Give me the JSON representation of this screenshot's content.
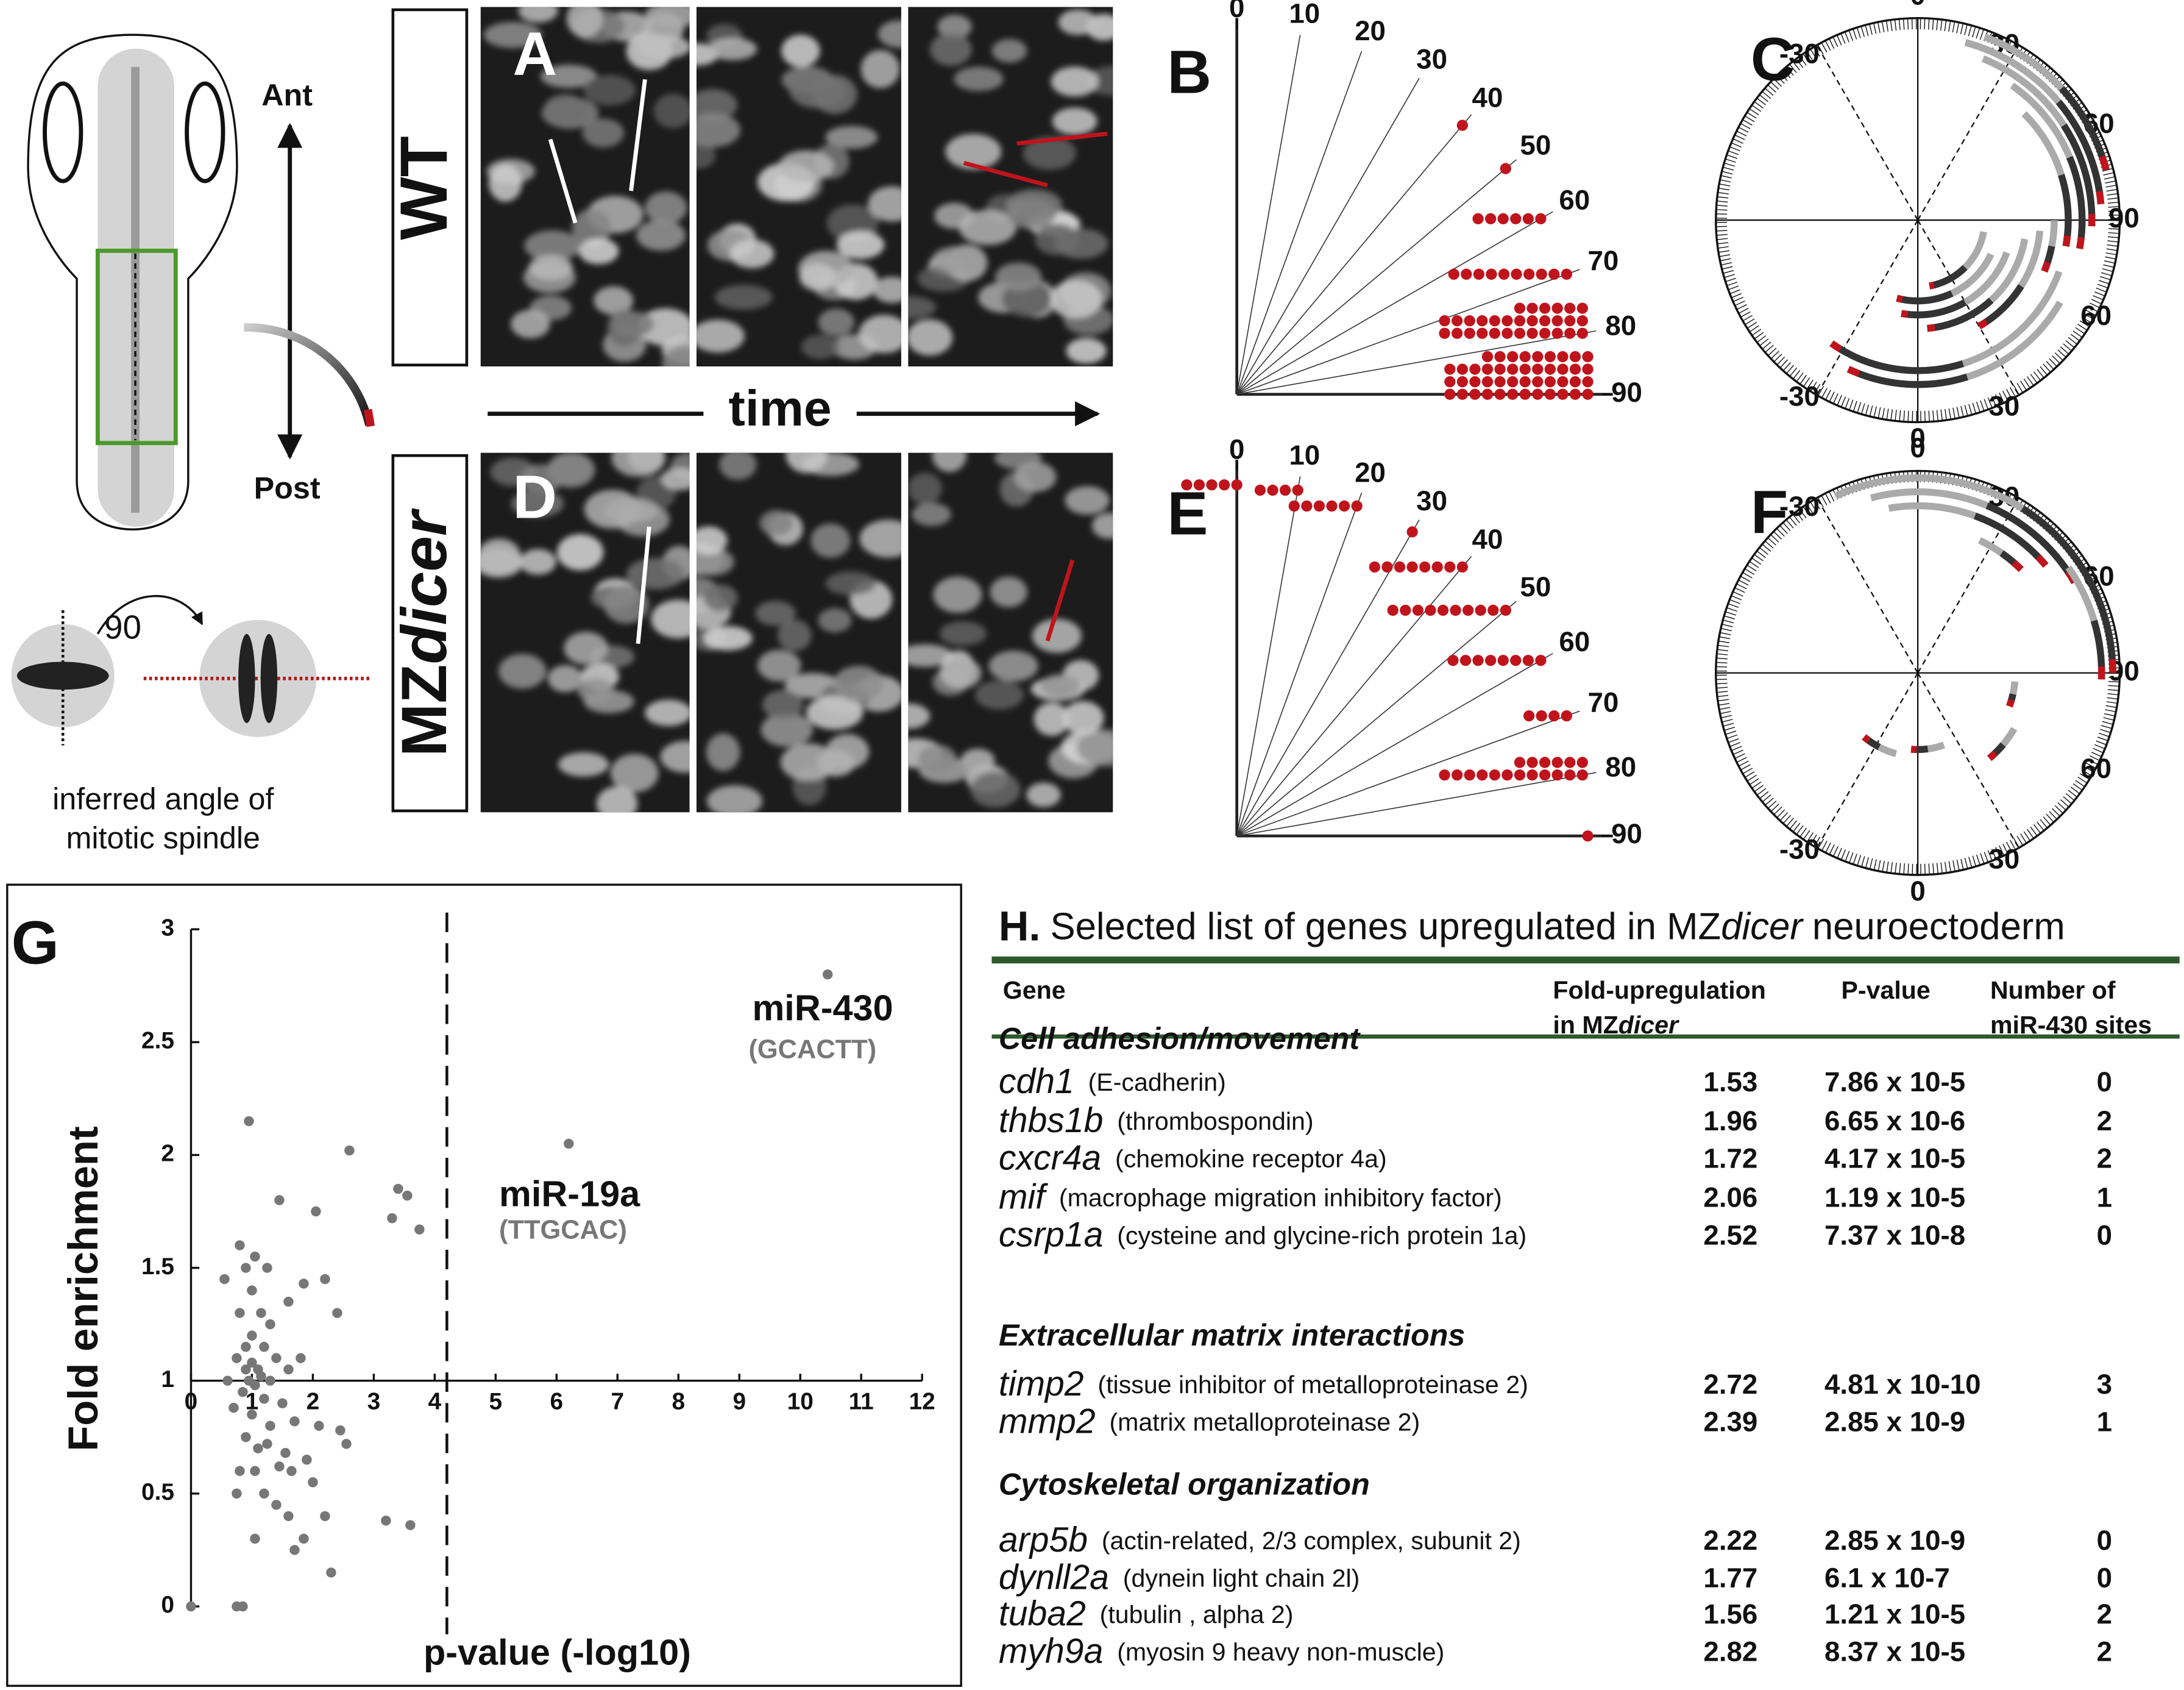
{
  "left_panel": {
    "anterior": "Ant",
    "posterior": "Post",
    "rotation": "90",
    "caption_line1": "inferred angle of",
    "caption_line2": "mitotic spindle"
  },
  "image_panels": {
    "wt_label": "A",
    "wt_genotype": "WT",
    "time": "time",
    "mut_label": "D",
    "mut_prefix": "MZ",
    "mut_suffix": "dicer"
  },
  "circle_panels": [
    {
      "label": "C",
      "tick_labels": [
        "0",
        "30",
        "60",
        "90",
        "60",
        "30",
        "0",
        "-30",
        "-30"
      ]
    },
    {
      "label": "F",
      "tick_labels": [
        "0",
        "30",
        "60",
        "90",
        "60",
        "30",
        "0",
        "-30",
        "-30"
      ]
    }
  ],
  "chart_data": [
    {
      "type": "scatter",
      "panel_label": "G",
      "x_label": "p-value (-log10)",
      "y_label": "Fold enrichment",
      "xlim": [
        0,
        12
      ],
      "xticks": [
        0,
        1,
        2,
        3,
        4,
        5,
        6,
        7,
        8,
        9,
        10,
        11,
        12
      ],
      "ylim": [
        0,
        3
      ],
      "yticks": [
        0,
        0.5,
        1,
        1.5,
        2,
        2.5,
        3
      ],
      "xaxis_crossing": 1,
      "threshold_x": 4.2,
      "color": "#777777",
      "x": [
        10.45,
        6.2,
        0.95,
        2.6,
        3.4,
        3.55,
        3.3,
        3.75,
        1.45,
        2.05,
        0.8,
        1.05,
        1.25,
        0.55,
        2.2,
        1.85,
        2.4,
        1.6,
        0.9,
        1.0,
        1.15,
        0.8,
        1.3,
        1.0,
        0.9,
        1.2,
        0.75,
        1.1,
        1.4,
        0.95,
        1.05,
        0.85,
        1.2,
        1.5,
        0.7,
        1.0,
        1.3,
        1.7,
        2.1,
        2.45,
        0.9,
        1.1,
        1.55,
        1.9,
        0.8,
        1.45,
        1.65,
        2.0,
        1.2,
        0.75,
        1.4,
        2.2,
        1.6,
        1.85,
        1.05,
        1.7,
        2.3,
        3.2,
        3.6,
        0.0,
        0.75,
        0.85,
        1.0,
        1.15,
        0.9,
        1.3,
        1.6,
        0.6,
        1.8,
        1.25,
        2.55,
        1.05
      ],
      "values": [
        2.8,
        2.05,
        2.15,
        2.02,
        1.85,
        1.82,
        1.72,
        1.67,
        1.8,
        1.75,
        1.6,
        1.55,
        1.5,
        1.45,
        1.45,
        1.43,
        1.3,
        1.35,
        1.5,
        1.4,
        1.3,
        1.3,
        1.25,
        1.2,
        1.15,
        1.15,
        1.1,
        1.05,
        1.1,
        1.0,
        0.98,
        0.95,
        0.92,
        0.9,
        0.88,
        0.85,
        0.8,
        0.82,
        0.8,
        0.78,
        0.75,
        0.7,
        0.68,
        0.65,
        0.6,
        0.62,
        0.6,
        0.55,
        0.5,
        0.5,
        0.45,
        0.4,
        0.4,
        0.3,
        0.3,
        0.25,
        0.15,
        0.38,
        0.36,
        0.0,
        0.0,
        0.0,
        1.08,
        1.02,
        1.05,
        1.0,
        1.05,
        1.0,
        1.1,
        0.72,
        0.72,
        0.6
      ],
      "annotations": [
        {
          "text": "miR-430",
          "sub": "(GCACTT)",
          "point": 0
        },
        {
          "text": "miR-19a",
          "sub": "(TTGCAC)",
          "point": 1
        }
      ]
    },
    {
      "type": "polar-dots",
      "panel_label": "B",
      "color": "#c0141c",
      "angles": [
        0,
        10,
        20,
        30,
        40,
        50,
        60,
        70,
        80,
        90
      ],
      "counts": [
        0,
        0,
        0,
        0,
        1,
        1,
        6,
        10,
        30,
        45
      ]
    },
    {
      "type": "polar-dots",
      "panel_label": "E",
      "color": "#c0141c",
      "angles": [
        0,
        10,
        20,
        30,
        40,
        50,
        60,
        70,
        80,
        90
      ],
      "counts": [
        5,
        4,
        6,
        1,
        8,
        10,
        8,
        4,
        18,
        1
      ]
    }
  ],
  "table": {
    "title_label": "H.",
    "title_pre": "Selected list of genes upregulated in MZ",
    "title_italic": "dicer",
    "title_post": "neuroectoderm",
    "headers": {
      "gene": "Gene",
      "fold_line1": "Fold-upregulation",
      "fold_line2_pre": "in MZ",
      "fold_line2_italic": "dicer",
      "pvalue": "P-value",
      "sites_line1": "Number of",
      "sites_line2": "miR-430 sites"
    },
    "sections": [
      {
        "title": "Cell adhesion/movement",
        "rows": [
          {
            "gene": "cdh1",
            "desc": "(E-cadherin)",
            "fold": 1.53,
            "pvalue": "7.86 x 10-5",
            "sites": 0
          },
          {
            "gene": "thbs1b",
            "desc": "(thrombospondin)",
            "fold": 1.96,
            "pvalue": "6.65 x 10-6",
            "sites": 2
          },
          {
            "gene": "cxcr4a",
            "desc": "(chemokine receptor 4a)",
            "fold": 1.72,
            "pvalue": "4.17 x 10-5",
            "sites": 2
          },
          {
            "gene": "mif",
            "desc": "(macrophage migration inhibitory factor)",
            "fold": 2.06,
            "pvalue": "1.19 x 10-5",
            "sites": 1
          },
          {
            "gene": "csrp1a",
            "desc": "(cysteine and glycine-rich protein 1a)",
            "fold": 2.52,
            "pvalue": "7.37 x 10-8",
            "sites": 0
          }
        ]
      },
      {
        "title": "Extracellular matrix interactions",
        "rows": [
          {
            "gene": "timp2",
            "desc": "(tissue inhibitor of metalloproteinase 2)",
            "fold": 2.72,
            "pvalue": "4.81 x 10-10",
            "sites": 3
          },
          {
            "gene": "mmp2",
            "desc": "(matrix metalloproteinase 2)",
            "fold": 2.39,
            "pvalue": "2.85 x 10-9",
            "sites": 1
          }
        ]
      },
      {
        "title": "Cytoskeletal organization",
        "rows": [
          {
            "gene": "arp5b",
            "desc": "(actin-related, 2/3 complex, subunit 2)",
            "fold": 2.22,
            "pvalue": "2.85 x 10-9",
            "sites": 0
          },
          {
            "gene": "dynll2a",
            "desc": "(dynein light chain 2l)",
            "fold": 1.77,
            "pvalue": "6.1 x 10-7",
            "sites": 0
          },
          {
            "gene": "tuba2",
            "desc": "(tubulin , alpha 2)",
            "fold": 1.56,
            "pvalue": "1.21 x 10-5",
            "sites": 2
          },
          {
            "gene": "myh9a",
            "desc": "(myosin 9 heavy non-muscle)",
            "fold": 2.82,
            "pvalue": "8.37 x 10-5",
            "sites": 2
          }
        ]
      }
    ]
  }
}
